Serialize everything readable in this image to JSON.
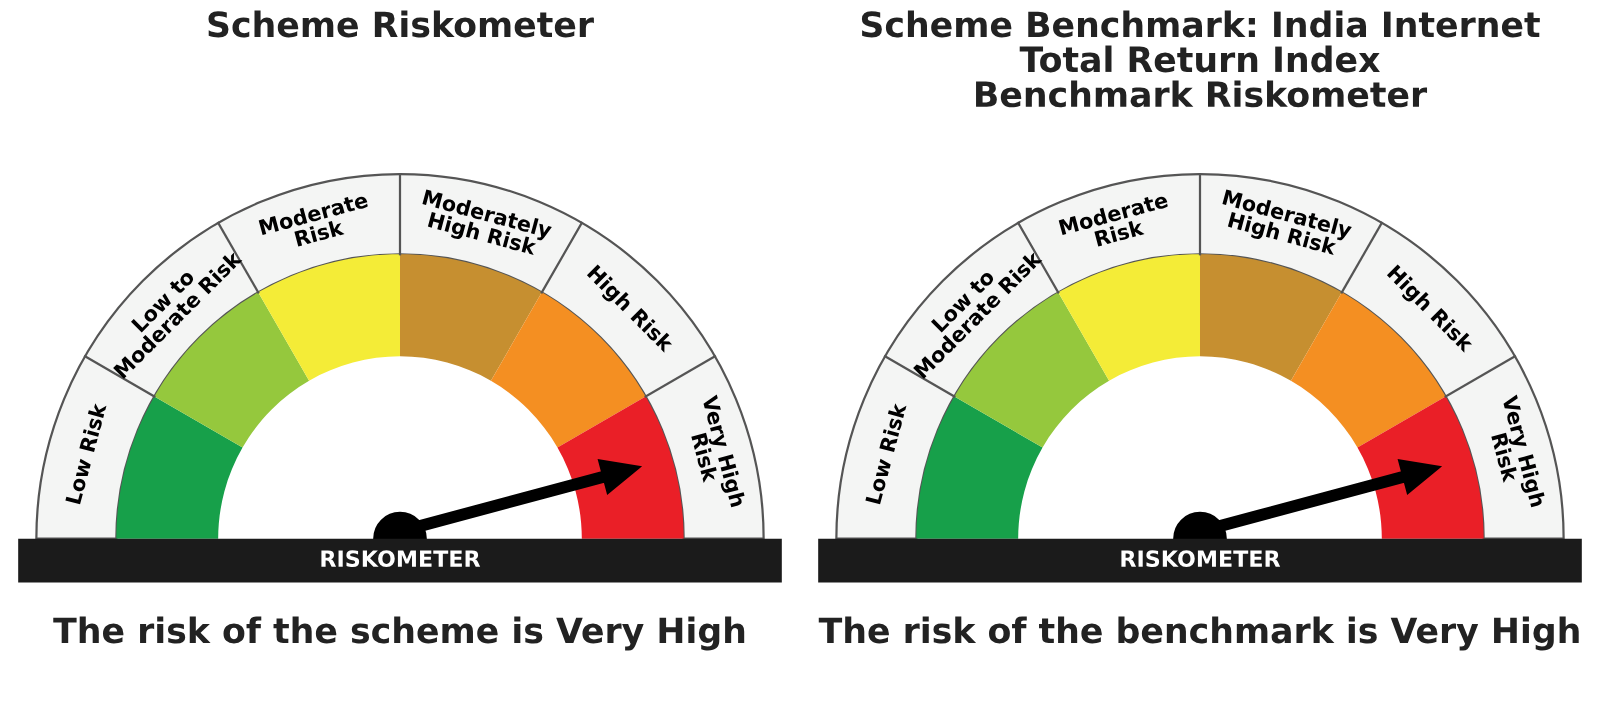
{
  "chart_data": [
    {
      "type": "donut",
      "title": "Scheme Riskometer",
      "categories": [
        "Low Risk",
        "Low to\nModerate Risk",
        "Moderate\nRisk",
        "Moderately\nHigh Risk",
        "High Risk",
        "Very High\nRisk"
      ],
      "values": [
        16.67,
        16.67,
        16.67,
        16.67,
        16.67,
        16.67
      ],
      "colors": [
        "#17a04a",
        "#95c83d",
        "#f4ec37",
        "#c68f30",
        "#f48f22",
        "#ea1f27"
      ],
      "needle": "Very High\nRisk",
      "annotations": [
        "RISKOMETER",
        "The risk of the scheme is Very High"
      ]
    },
    {
      "type": "donut",
      "title": "Scheme Benchmark: India Internet\nTotal Return Index\nBenchmark Riskometer",
      "categories": [
        "Low Risk",
        "Low to\nModerate Risk",
        "Moderate\nRisk",
        "Moderately\nHigh Risk",
        "High Risk",
        "Very High\nRisk"
      ],
      "values": [
        16.67,
        16.67,
        16.67,
        16.67,
        16.67,
        16.67
      ],
      "colors": [
        "#17a04a",
        "#95c83d",
        "#f4ec37",
        "#c68f30",
        "#f48f22",
        "#ea1f27"
      ],
      "needle": "Very High\nRisk",
      "annotations": [
        "RISKOMETER",
        "The risk of the benchmark is Very High"
      ]
    }
  ]
}
